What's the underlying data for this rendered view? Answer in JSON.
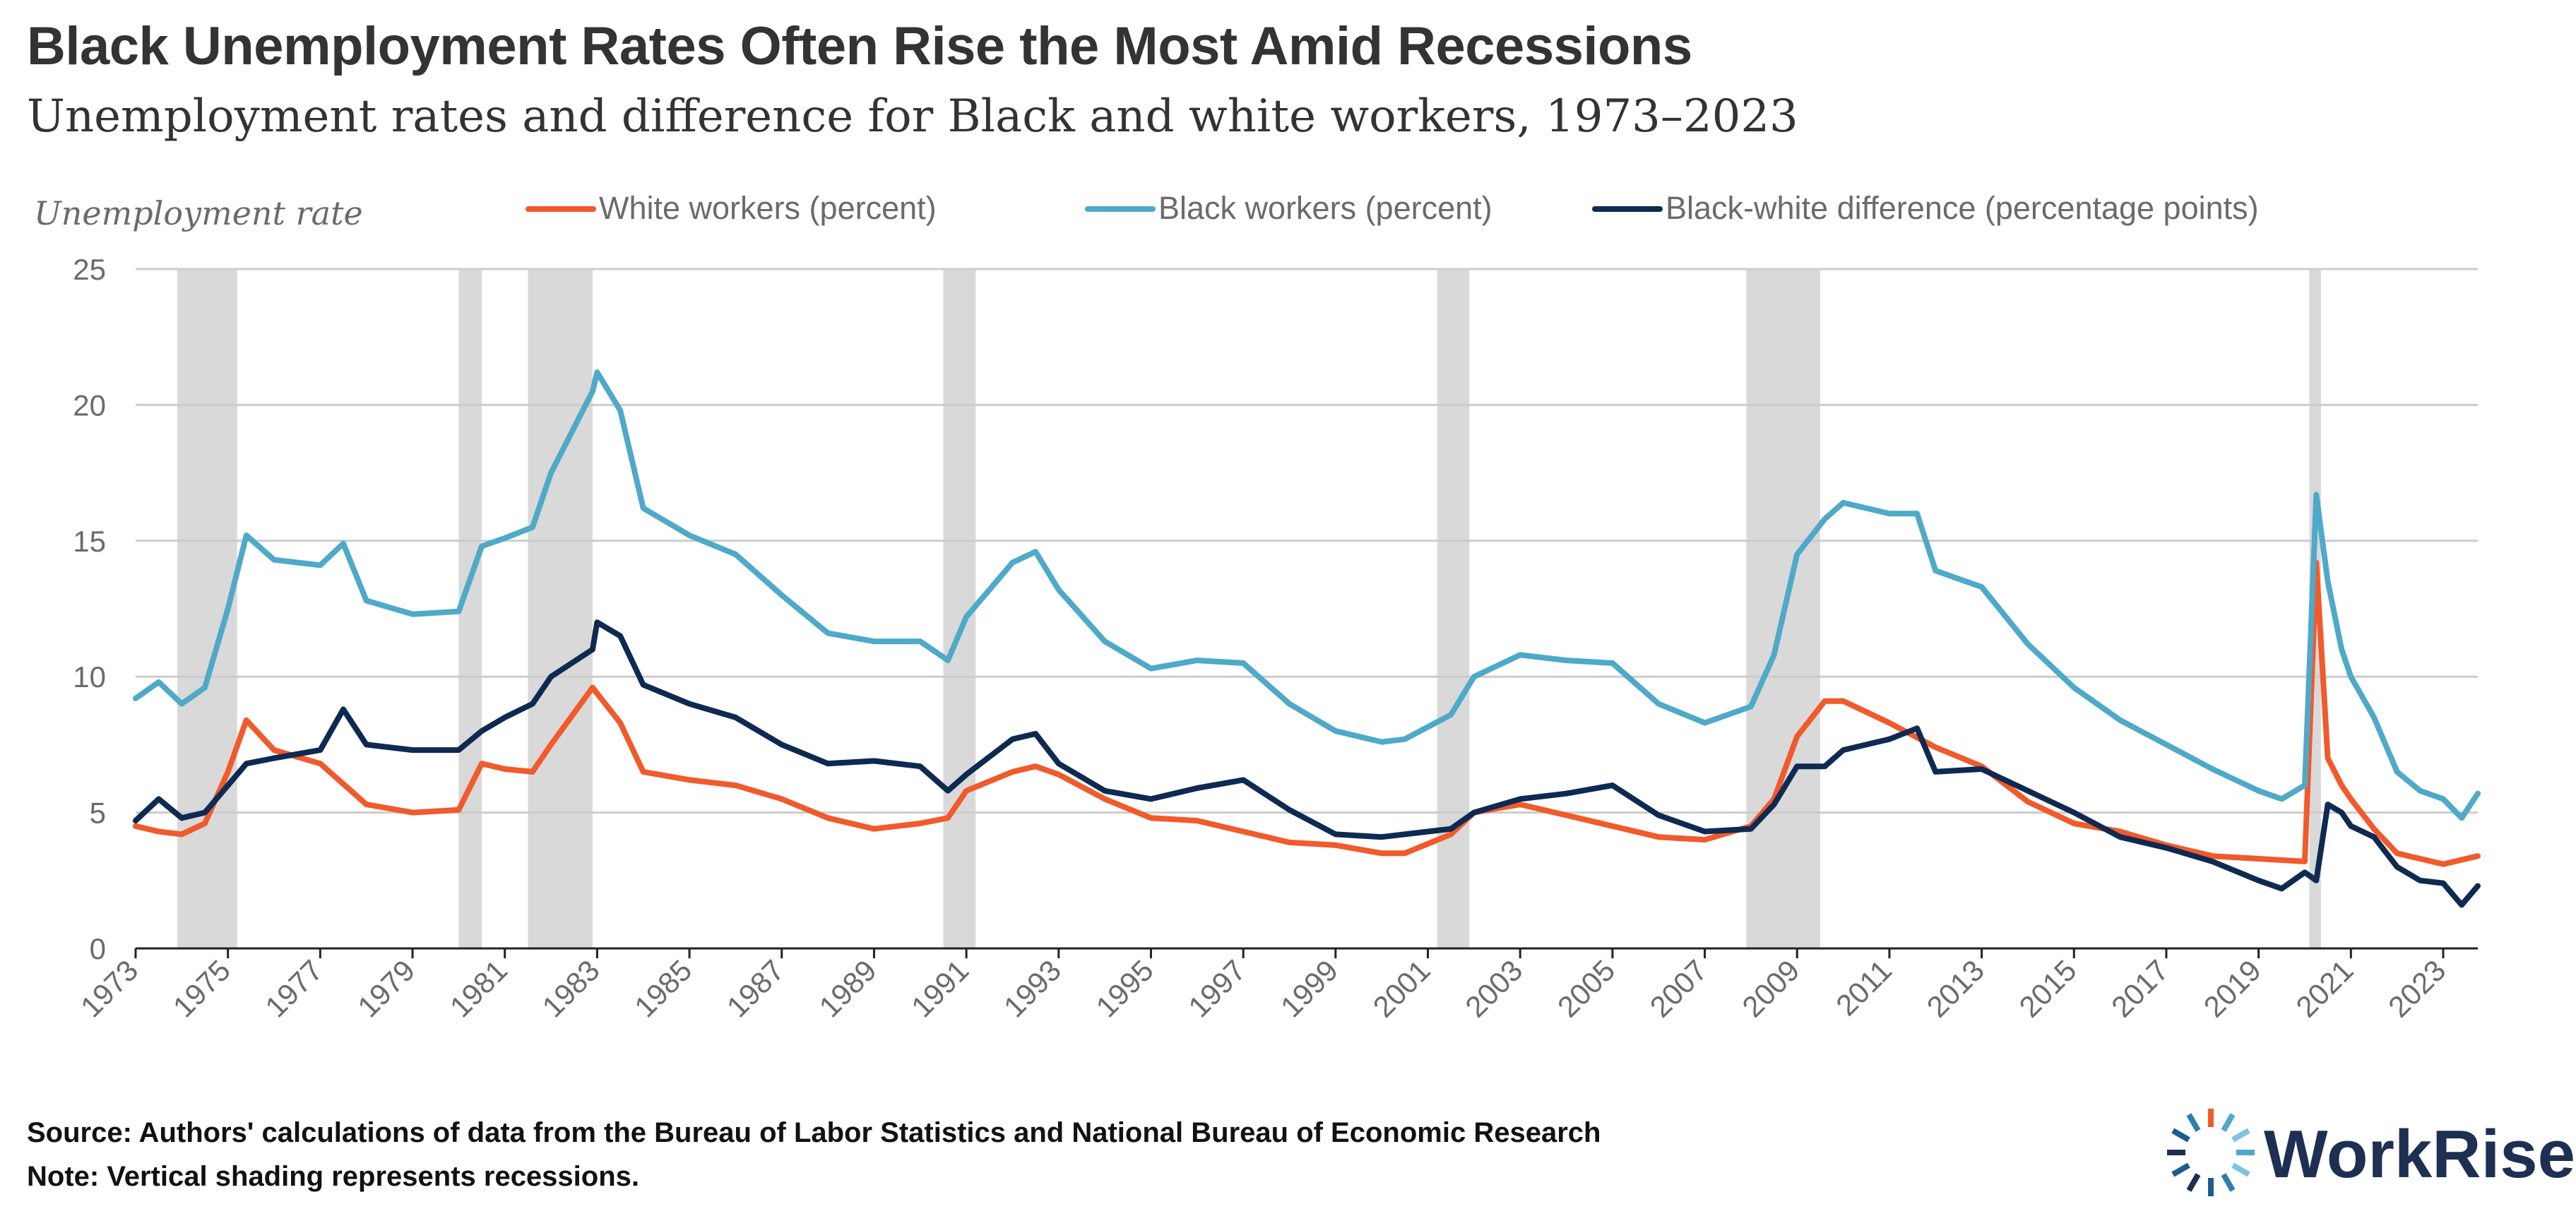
{
  "header": {
    "title": "Black Unemployment Rates Often Rise the Most Amid Recessions",
    "subtitle": "Unemployment rates and difference for Black and white workers, 1973–2023"
  },
  "footer": {
    "source": "Source: Authors' calculations of data from the Bureau of Labor Statistics and National Bureau of Economic Research",
    "note": "Note: Vertical shading represents recessions."
  },
  "logo": {
    "text": "WorkRise"
  },
  "colors": {
    "white_series": "#f15a2b",
    "black_series": "#4fa9c8",
    "difference_series": "#0e2a52",
    "recession_shading": "#d9d9d9",
    "gridline": "#cccccc"
  },
  "chart_data": {
    "type": "line",
    "ylabel": "Unemployment rate",
    "xlabel": "",
    "xlim": [
      1973,
      2023.75
    ],
    "ylim": [
      0,
      25
    ],
    "y_ticks": [
      0,
      5,
      10,
      15,
      20,
      25
    ],
    "x_ticks": [
      1973,
      1975,
      1977,
      1979,
      1981,
      1983,
      1985,
      1987,
      1989,
      1991,
      1993,
      1995,
      1997,
      1999,
      2001,
      2003,
      2005,
      2007,
      2009,
      2011,
      2013,
      2015,
      2017,
      2019,
      2021,
      2023
    ],
    "grid": true,
    "legend_position": "top",
    "recessions": [
      [
        1973.9,
        1975.2
      ],
      [
        1980.0,
        1980.5
      ],
      [
        1981.5,
        1982.9
      ],
      [
        1990.5,
        1991.2
      ],
      [
        2001.2,
        2001.9
      ],
      [
        2007.9,
        2009.5
      ],
      [
        2020.1,
        2020.35
      ]
    ],
    "series": [
      {
        "name": "White workers (percent)",
        "color": "#f15a2b",
        "points": [
          [
            1973.0,
            4.5
          ],
          [
            1973.5,
            4.3
          ],
          [
            1974.0,
            4.2
          ],
          [
            1974.5,
            4.6
          ],
          [
            1975.0,
            6.5
          ],
          [
            1975.4,
            8.4
          ],
          [
            1976.0,
            7.3
          ],
          [
            1977.0,
            6.8
          ],
          [
            1978.0,
            5.3
          ],
          [
            1979.0,
            5.0
          ],
          [
            1980.0,
            5.1
          ],
          [
            1980.5,
            6.8
          ],
          [
            1981.0,
            6.6
          ],
          [
            1981.6,
            6.5
          ],
          [
            1982.0,
            7.5
          ],
          [
            1982.9,
            9.6
          ],
          [
            1983.5,
            8.3
          ],
          [
            1984.0,
            6.5
          ],
          [
            1985.0,
            6.2
          ],
          [
            1986.0,
            6.0
          ],
          [
            1987.0,
            5.5
          ],
          [
            1988.0,
            4.8
          ],
          [
            1989.0,
            4.4
          ],
          [
            1990.0,
            4.6
          ],
          [
            1990.6,
            4.8
          ],
          [
            1991.0,
            5.8
          ],
          [
            1992.0,
            6.5
          ],
          [
            1992.5,
            6.7
          ],
          [
            1993.0,
            6.4
          ],
          [
            1994.0,
            5.5
          ],
          [
            1995.0,
            4.8
          ],
          [
            1996.0,
            4.7
          ],
          [
            1997.0,
            4.3
          ],
          [
            1998.0,
            3.9
          ],
          [
            1999.0,
            3.8
          ],
          [
            2000.0,
            3.5
          ],
          [
            2000.5,
            3.5
          ],
          [
            2001.5,
            4.2
          ],
          [
            2002.0,
            5.0
          ],
          [
            2003.0,
            5.3
          ],
          [
            2004.0,
            4.9
          ],
          [
            2005.0,
            4.5
          ],
          [
            2006.0,
            4.1
          ],
          [
            2007.0,
            4.0
          ],
          [
            2008.0,
            4.5
          ],
          [
            2008.5,
            5.5
          ],
          [
            2009.0,
            7.8
          ],
          [
            2009.6,
            9.1
          ],
          [
            2010.0,
            9.1
          ],
          [
            2011.0,
            8.3
          ],
          [
            2012.0,
            7.4
          ],
          [
            2013.0,
            6.7
          ],
          [
            2014.0,
            5.4
          ],
          [
            2015.0,
            4.6
          ],
          [
            2016.0,
            4.3
          ],
          [
            2017.0,
            3.8
          ],
          [
            2018.0,
            3.4
          ],
          [
            2019.0,
            3.3
          ],
          [
            2020.0,
            3.2
          ],
          [
            2020.25,
            14.2
          ],
          [
            2020.5,
            7.0
          ],
          [
            2020.8,
            6.0
          ],
          [
            2021.0,
            5.5
          ],
          [
            2021.5,
            4.4
          ],
          [
            2022.0,
            3.5
          ],
          [
            2022.5,
            3.3
          ],
          [
            2023.0,
            3.1
          ],
          [
            2023.75,
            3.4
          ]
        ]
      },
      {
        "name": "Black workers (percent)",
        "color": "#4fa9c8",
        "points": [
          [
            1973.0,
            9.2
          ],
          [
            1973.5,
            9.8
          ],
          [
            1974.0,
            9.0
          ],
          [
            1974.5,
            9.6
          ],
          [
            1975.0,
            12.5
          ],
          [
            1975.4,
            15.2
          ],
          [
            1976.0,
            14.3
          ],
          [
            1977.0,
            14.1
          ],
          [
            1977.5,
            14.9
          ],
          [
            1978.0,
            12.8
          ],
          [
            1979.0,
            12.3
          ],
          [
            1980.0,
            12.4
          ],
          [
            1980.5,
            14.8
          ],
          [
            1981.0,
            15.1
          ],
          [
            1981.6,
            15.5
          ],
          [
            1982.0,
            17.5
          ],
          [
            1982.9,
            20.5
          ],
          [
            1983.0,
            21.2
          ],
          [
            1983.5,
            19.8
          ],
          [
            1984.0,
            16.2
          ],
          [
            1985.0,
            15.2
          ],
          [
            1986.0,
            14.5
          ],
          [
            1987.0,
            13.0
          ],
          [
            1988.0,
            11.6
          ],
          [
            1989.0,
            11.3
          ],
          [
            1990.0,
            11.3
          ],
          [
            1990.6,
            10.6
          ],
          [
            1991.0,
            12.2
          ],
          [
            1992.0,
            14.2
          ],
          [
            1992.5,
            14.6
          ],
          [
            1993.0,
            13.2
          ],
          [
            1994.0,
            11.3
          ],
          [
            1995.0,
            10.3
          ],
          [
            1996.0,
            10.6
          ],
          [
            1997.0,
            10.5
          ],
          [
            1998.0,
            9.0
          ],
          [
            1999.0,
            8.0
          ],
          [
            2000.0,
            7.6
          ],
          [
            2000.5,
            7.7
          ],
          [
            2001.5,
            8.6
          ],
          [
            2002.0,
            10.0
          ],
          [
            2003.0,
            10.8
          ],
          [
            2004.0,
            10.6
          ],
          [
            2005.0,
            10.5
          ],
          [
            2006.0,
            9.0
          ],
          [
            2007.0,
            8.3
          ],
          [
            2008.0,
            8.9
          ],
          [
            2008.5,
            10.8
          ],
          [
            2009.0,
            14.5
          ],
          [
            2009.6,
            15.8
          ],
          [
            2010.0,
            16.4
          ],
          [
            2011.0,
            16.0
          ],
          [
            2011.6,
            16.0
          ],
          [
            2012.0,
            13.9
          ],
          [
            2013.0,
            13.3
          ],
          [
            2014.0,
            11.2
          ],
          [
            2015.0,
            9.6
          ],
          [
            2016.0,
            8.4
          ],
          [
            2017.0,
            7.5
          ],
          [
            2018.0,
            6.6
          ],
          [
            2019.0,
            5.8
          ],
          [
            2019.5,
            5.5
          ],
          [
            2020.0,
            6.0
          ],
          [
            2020.25,
            16.7
          ],
          [
            2020.5,
            13.5
          ],
          [
            2020.8,
            11.0
          ],
          [
            2021.0,
            10.0
          ],
          [
            2021.5,
            8.5
          ],
          [
            2022.0,
            6.5
          ],
          [
            2022.5,
            5.8
          ],
          [
            2023.0,
            5.5
          ],
          [
            2023.4,
            4.8
          ],
          [
            2023.75,
            5.7
          ]
        ]
      },
      {
        "name": "Black-white difference (percentage points)",
        "color": "#0e2a52",
        "points": [
          [
            1973.0,
            4.7
          ],
          [
            1973.5,
            5.5
          ],
          [
            1974.0,
            4.8
          ],
          [
            1974.5,
            5.0
          ],
          [
            1975.0,
            6.0
          ],
          [
            1975.4,
            6.8
          ],
          [
            1976.0,
            7.0
          ],
          [
            1977.0,
            7.3
          ],
          [
            1977.5,
            8.8
          ],
          [
            1978.0,
            7.5
          ],
          [
            1979.0,
            7.3
          ],
          [
            1980.0,
            7.3
          ],
          [
            1980.5,
            8.0
          ],
          [
            1981.0,
            8.5
          ],
          [
            1981.6,
            9.0
          ],
          [
            1982.0,
            10.0
          ],
          [
            1982.9,
            11.0
          ],
          [
            1983.0,
            12.0
          ],
          [
            1983.5,
            11.5
          ],
          [
            1984.0,
            9.7
          ],
          [
            1985.0,
            9.0
          ],
          [
            1986.0,
            8.5
          ],
          [
            1987.0,
            7.5
          ],
          [
            1988.0,
            6.8
          ],
          [
            1989.0,
            6.9
          ],
          [
            1990.0,
            6.7
          ],
          [
            1990.6,
            5.8
          ],
          [
            1991.0,
            6.4
          ],
          [
            1992.0,
            7.7
          ],
          [
            1992.5,
            7.9
          ],
          [
            1993.0,
            6.8
          ],
          [
            1994.0,
            5.8
          ],
          [
            1995.0,
            5.5
          ],
          [
            1996.0,
            5.9
          ],
          [
            1997.0,
            6.2
          ],
          [
            1998.0,
            5.1
          ],
          [
            1999.0,
            4.2
          ],
          [
            2000.0,
            4.1
          ],
          [
            2000.5,
            4.2
          ],
          [
            2001.5,
            4.4
          ],
          [
            2002.0,
            5.0
          ],
          [
            2003.0,
            5.5
          ],
          [
            2004.0,
            5.7
          ],
          [
            2005.0,
            6.0
          ],
          [
            2006.0,
            4.9
          ],
          [
            2007.0,
            4.3
          ],
          [
            2008.0,
            4.4
          ],
          [
            2008.5,
            5.3
          ],
          [
            2009.0,
            6.7
          ],
          [
            2009.6,
            6.7
          ],
          [
            2010.0,
            7.3
          ],
          [
            2011.0,
            7.7
          ],
          [
            2011.6,
            8.1
          ],
          [
            2012.0,
            6.5
          ],
          [
            2013.0,
            6.6
          ],
          [
            2014.0,
            5.8
          ],
          [
            2015.0,
            5.0
          ],
          [
            2016.0,
            4.1
          ],
          [
            2017.0,
            3.7
          ],
          [
            2018.0,
            3.2
          ],
          [
            2019.0,
            2.5
          ],
          [
            2019.5,
            2.2
          ],
          [
            2020.0,
            2.8
          ],
          [
            2020.25,
            2.5
          ],
          [
            2020.5,
            5.3
          ],
          [
            2020.8,
            5.0
          ],
          [
            2021.0,
            4.5
          ],
          [
            2021.5,
            4.1
          ],
          [
            2022.0,
            3.0
          ],
          [
            2022.5,
            2.5
          ],
          [
            2023.0,
            2.4
          ],
          [
            2023.4,
            1.6
          ],
          [
            2023.75,
            2.3
          ]
        ]
      }
    ]
  }
}
